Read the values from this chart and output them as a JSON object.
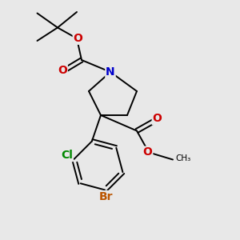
{
  "background_color": "#e8e8e8",
  "bond_color": "#000000",
  "bond_width": 1.4,
  "font_size_atoms": 10,
  "N_color": "#0000cc",
  "O_color": "#cc0000",
  "Cl_color": "#008800",
  "Br_color": "#bb5500",
  "C_color": "#000000",
  "xlim": [
    0,
    10
  ],
  "ylim": [
    0,
    10
  ]
}
